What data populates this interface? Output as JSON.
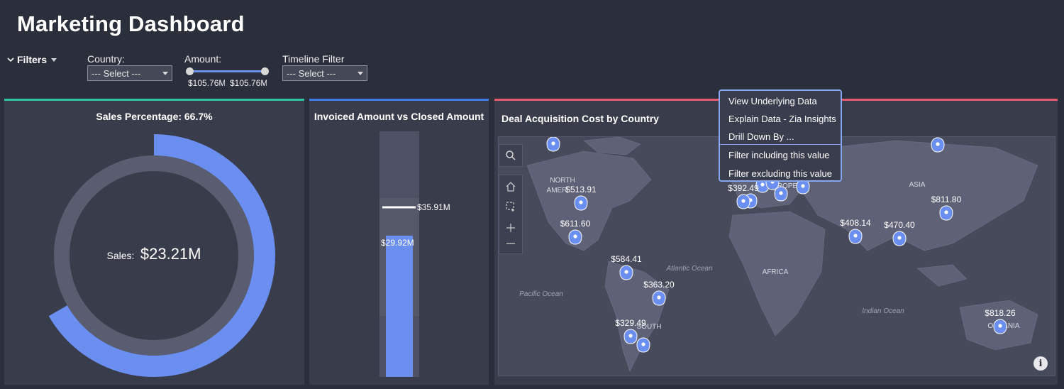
{
  "page": {
    "title": "Marketing Dashboard"
  },
  "filters": {
    "toggle_label": "Filters",
    "country": {
      "label": "Country:",
      "value": "--- Select ---"
    },
    "amount": {
      "label": "Amount:",
      "min_label": "$105.76M",
      "max_label": "$105.76M"
    },
    "timeline": {
      "label": "Timeline Filter",
      "value": "--- Select ---"
    }
  },
  "colors": {
    "accent_green": "#2ec4a4",
    "accent_blue": "#3f7ee8",
    "accent_red": "#e85a6e",
    "series_blue": "#6b8ff0",
    "track": "#5a5d70"
  },
  "cards": {
    "sales": {
      "title": "Sales Percentage: 66.7%",
      "center_label": "Sales:",
      "center_value": "$23.21M",
      "percent": 66.7
    },
    "invoiced": {
      "title": "Invoiced Amount vs Closed Amount",
      "target_label": "$35.91M",
      "bar_label": "$29.92M",
      "target": 35.91,
      "value": 29.92
    },
    "map": {
      "title": "Deal Acquisition Cost by Country"
    }
  },
  "map": {
    "regions": [
      "NORTH AMERICA",
      "SOUTH AMERICA",
      "EUROPE",
      "ASIA",
      "AFRICA",
      "OCEANIA"
    ],
    "oceans": [
      "Atlantic Ocean",
      "Pacific Ocean",
      "Indian Ocean"
    ],
    "pins": [
      {
        "label": "$513.91"
      },
      {
        "label": "$611.60"
      },
      {
        "label": "$584.41"
      },
      {
        "label": "$363.20"
      },
      {
        "label": "$329.49"
      },
      {
        "label": "$392.49"
      },
      {
        "label": "$408.14"
      },
      {
        "label": "$470.40"
      },
      {
        "label": "$811.80"
      },
      {
        "label": "$818.26"
      }
    ]
  },
  "context_menu": {
    "items": [
      "View Underlying Data",
      "Explain Data - Zia Insights",
      "Drill Down By ...",
      "Filter including this value",
      "Filter excluding this value"
    ]
  },
  "icons": {
    "search": "search-icon",
    "home": "home-icon",
    "select": "marquee-select-icon",
    "zoom_in": "plus-icon",
    "zoom_out": "minus-icon",
    "info": "info-icon",
    "pin": "map-pin-icon"
  }
}
